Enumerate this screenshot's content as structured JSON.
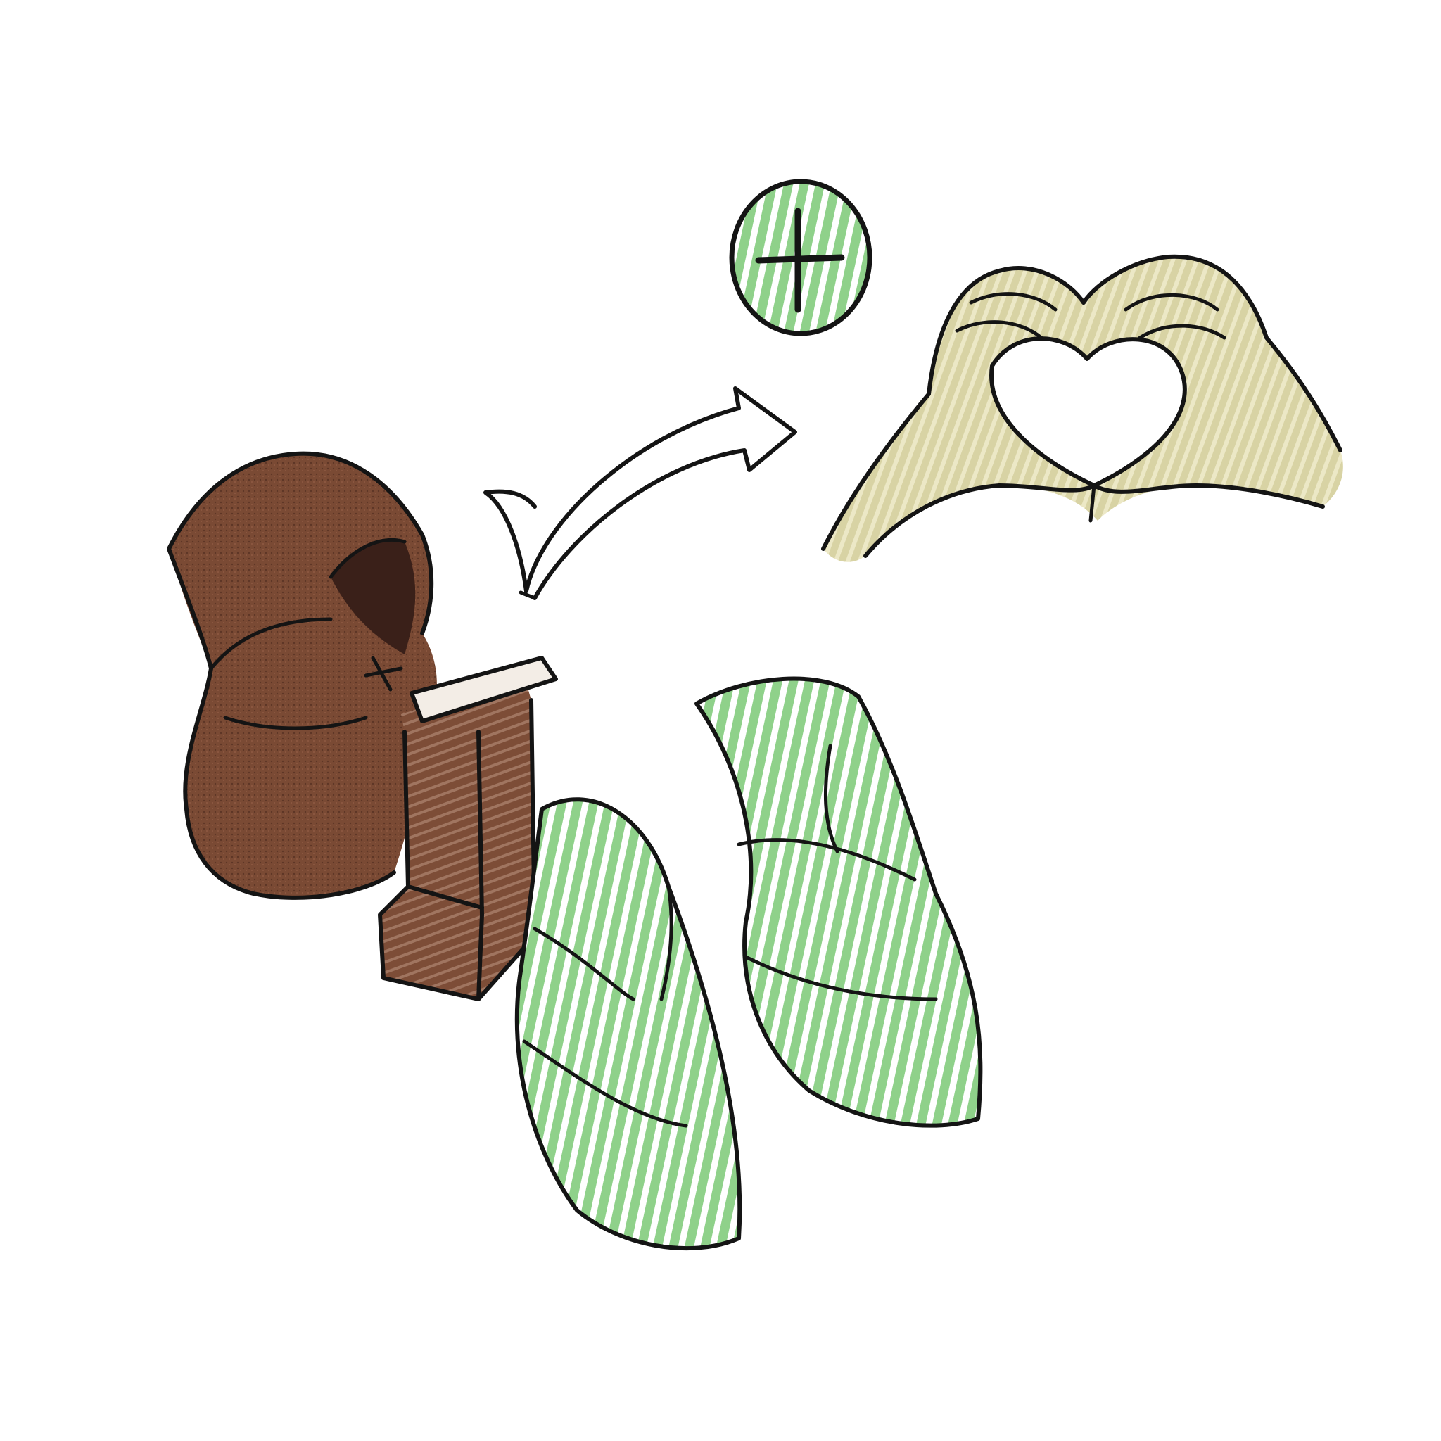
{
  "scene": {
    "background_color": "#ffffff",
    "ink_color": "#141414",
    "style": "crayon sketch illustration",
    "elements": {
      "monk": {
        "icon": "hooded-monk-icon",
        "robe_color": "#7a4a34",
        "shadow_color": "#3a2019"
      },
      "lectern": {
        "icon": "lectern-icon",
        "color": "#6e4430"
      },
      "arrow": {
        "icon": "curved-arrow-icon"
      },
      "plus_badge": {
        "icon": "plus-circle-icon",
        "fill_color": "#8fd18a"
      },
      "heart_hands": {
        "icon": "heart-hands-icon",
        "skin_color": "#d8d3a4"
      },
      "leaves": {
        "icon": "green-leaves-icon",
        "count": 2,
        "fill_color": "#8fd18a"
      }
    }
  }
}
